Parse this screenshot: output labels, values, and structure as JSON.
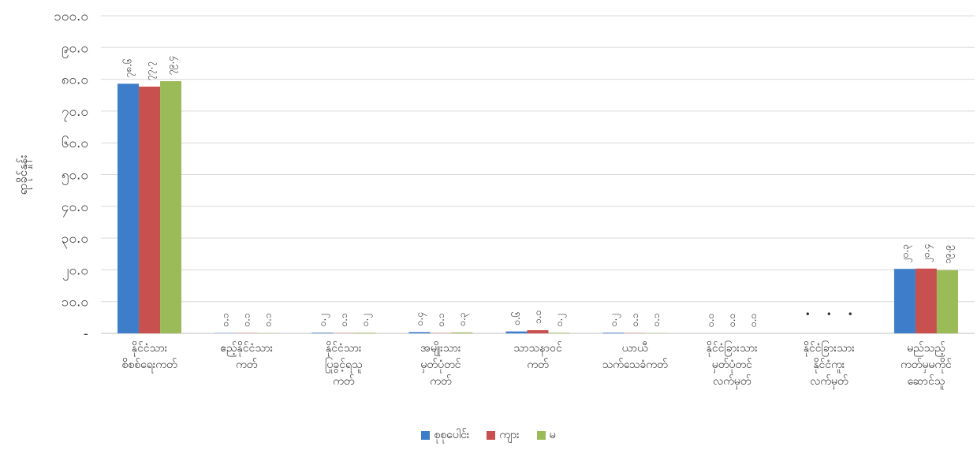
{
  "chart_data": {
    "type": "bar",
    "ylabel": "ရာခိုင်နှုန်း",
    "ylim": [
      0,
      100
    ],
    "yticks": [
      "-",
      "၁၀.၀",
      "၂၀.၀",
      "၃၀.၀",
      "၄၀.၀",
      "၅၀.၀",
      "၆၀.၀",
      "၇၀.၀",
      "၈၀.၀",
      "၉၀.၀",
      "၁၀၀.၀"
    ],
    "grid": true,
    "legend_position": "bottom",
    "categories": [
      [
        "နိုင်ငံသား",
        "စိစစ်ရေးကတ်"
      ],
      [
        "ဧည့်နိုင်ငံသား",
        "ကတ်"
      ],
      [
        "နိုင်ငံသား",
        "ပြုခွင့်ရသူ",
        "ကတ်"
      ],
      [
        "အမျိုးသား",
        "မှတ်ပုံတင်",
        "ကတ်"
      ],
      [
        "သာသနာဝင်",
        "ကတ်"
      ],
      [
        "ယာယီ",
        "သက်သေခံကတ်"
      ],
      [
        "နိုင်ငံခြားသား",
        "မှတ်ပုံတင်",
        "လက်မှတ်"
      ],
      [
        "နိုင်ငံခြားသား",
        "နိုင်ငံကူး",
        "လက်မှတ်"
      ],
      [
        "မည်သည့်",
        "ကတ်မှမကိုင်",
        "ဆောင်သူ"
      ]
    ],
    "series": [
      {
        "name": "စုစုပေါင်း",
        "color": "#3d7dca",
        "values": [
          78.6,
          0.1,
          0.2,
          0.4,
          0.6,
          0.2,
          0.0,
          0.0,
          20.3
        ],
        "labels": [
          "၇၈.၆",
          "၀.၁",
          "၀.၂",
          "၀.၄",
          "၀.၆",
          "၀.၂",
          "၀.၀",
          "•",
          "၂၀.၃"
        ]
      },
      {
        "name": "ကျား",
        "color": "#c8504f",
        "values": [
          77.7,
          0.1,
          0.1,
          0.1,
          1.0,
          0.1,
          0.0,
          0.0,
          20.4
        ],
        "labels": [
          "၇၇.၇",
          "၀.၁",
          "၀.၁",
          "၀.၁",
          "၁.၀",
          "၀.၁",
          "၀.၀",
          "•",
          "၂၀.၄"
        ]
      },
      {
        "name": "မ",
        "color": "#9bbb59",
        "values": [
          79.4,
          0.1,
          0.2,
          0.3,
          0.2,
          0.1,
          0.0,
          0.0,
          19.9
        ],
        "labels": [
          "၇၉.၄",
          "၀.၁",
          "၀.၂",
          "၀.၃",
          "၀.၂",
          "၀.၁",
          "၀.၀",
          "•",
          "၁၉.၉"
        ]
      }
    ]
  }
}
